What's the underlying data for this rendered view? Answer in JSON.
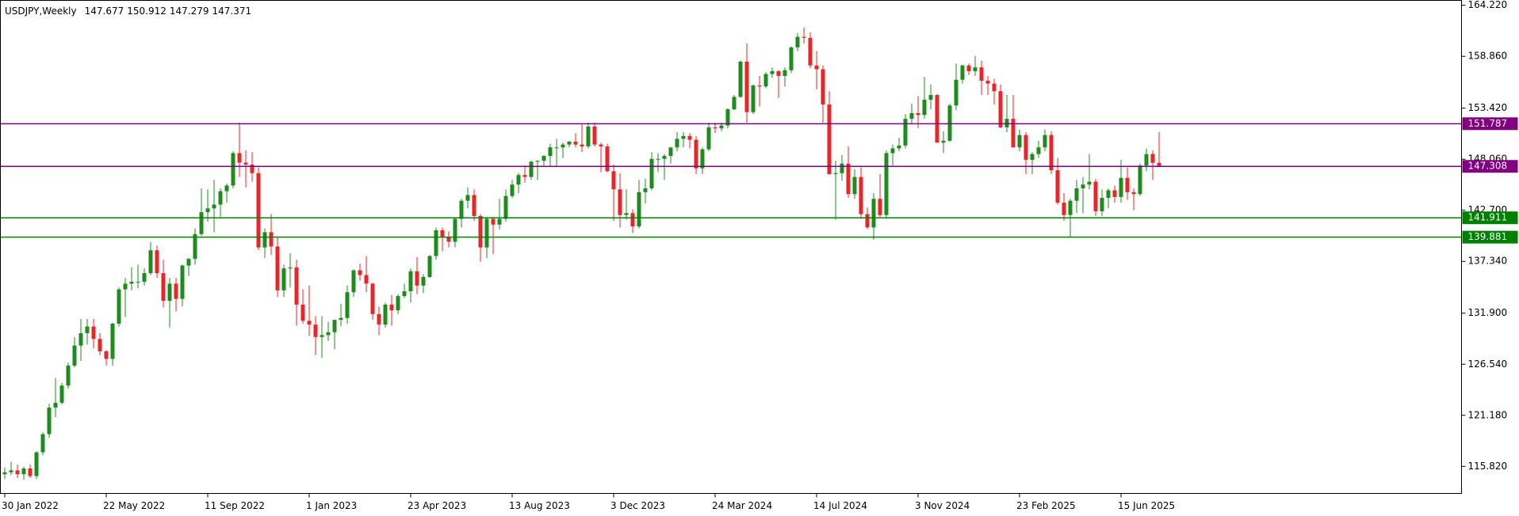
{
  "chart_data": {
    "type": "candlestick",
    "title": "USDJPY,Weekly",
    "up_color": "#1f8b1f",
    "down_color": "#e8262a",
    "ylim": [
      112.98,
      164.73
    ],
    "yticks": [
      {
        "value": 164.22,
        "label": "164.220"
      },
      {
        "value": 158.86,
        "label": "158.860"
      },
      {
        "value": 153.42,
        "label": "153.420"
      },
      {
        "value": 148.06,
        "label": "148.060"
      },
      {
        "value": 142.7,
        "label": "142.700"
      },
      {
        "value": 137.34,
        "label": "137.340"
      },
      {
        "value": 131.9,
        "label": "131.900"
      },
      {
        "value": 126.54,
        "label": "126.540"
      },
      {
        "value": 121.18,
        "label": "121.180"
      },
      {
        "value": 115.82,
        "label": "115.820"
      }
    ],
    "levels": [
      {
        "value": 151.787,
        "color": "#800080"
      },
      {
        "value": 147.308,
        "color": "#800080"
      },
      {
        "value": 141.911,
        "color": "#008000"
      },
      {
        "value": 139.881,
        "color": "#008000"
      }
    ],
    "categories": [
      "30 Jan 2022",
      null,
      null,
      null,
      null,
      null,
      null,
      null,
      null,
      null,
      null,
      null,
      null,
      null,
      null,
      null,
      "22 May 2022",
      null,
      null,
      null,
      null,
      null,
      null,
      null,
      null,
      null,
      null,
      null,
      null,
      null,
      null,
      null,
      "11 Sep 2022",
      null,
      null,
      null,
      null,
      null,
      null,
      null,
      null,
      null,
      null,
      null,
      null,
      null,
      null,
      null,
      "1 Jan 2023",
      null,
      null,
      null,
      null,
      null,
      null,
      null,
      null,
      null,
      null,
      null,
      null,
      null,
      null,
      null,
      "23 Apr 2023",
      null,
      null,
      null,
      null,
      null,
      null,
      null,
      null,
      null,
      null,
      null,
      null,
      null,
      null,
      null,
      "13 Aug 2023",
      null,
      null,
      null,
      null,
      null,
      null,
      null,
      null,
      null,
      null,
      null,
      null,
      null,
      null,
      null,
      "3 Dec 2023",
      null,
      null,
      null,
      null,
      null,
      null,
      null,
      null,
      null,
      null,
      null,
      null,
      null,
      null,
      null,
      "24 Mar 2024",
      null,
      null,
      null,
      null,
      null,
      null,
      null,
      null,
      null,
      null,
      null,
      null,
      null,
      null,
      null,
      "14 Jul 2024",
      null,
      null,
      null,
      null,
      null,
      null,
      null,
      null,
      null,
      null,
      null,
      null,
      null,
      null,
      null,
      "3 Nov 2024",
      null,
      null,
      null,
      null,
      null,
      null,
      null,
      null,
      null,
      null,
      null,
      null,
      null,
      null,
      null,
      "23 Feb 2025",
      null,
      null,
      null,
      null,
      null,
      null,
      null,
      null,
      null,
      null,
      null,
      null,
      null,
      null,
      null,
      "15 Jun 2025",
      null,
      null,
      null,
      null,
      null,
      null
    ],
    "candles": [
      [
        115.0,
        115.7,
        114.5,
        115.2
      ],
      [
        115.2,
        116.3,
        114.9,
        115.4
      ],
      [
        115.4,
        116.0,
        114.6,
        115.0
      ],
      [
        115.0,
        115.8,
        114.4,
        115.6
      ],
      [
        115.6,
        116.0,
        114.6,
        114.8
      ],
      [
        114.8,
        117.4,
        114.5,
        117.3
      ],
      [
        117.3,
        119.4,
        117.0,
        119.2
      ],
      [
        119.2,
        122.4,
        118.8,
        122.0
      ],
      [
        122.0,
        125.1,
        121.0,
        122.5
      ],
      [
        122.5,
        124.6,
        122.3,
        124.3
      ],
      [
        124.3,
        126.7,
        124.0,
        126.4
      ],
      [
        126.4,
        129.4,
        126.2,
        128.5
      ],
      [
        128.5,
        131.3,
        126.9,
        129.8
      ],
      [
        129.8,
        131.3,
        128.6,
        130.5
      ],
      [
        130.5,
        131.3,
        128.2,
        129.2
      ],
      [
        129.2,
        129.8,
        127.5,
        127.9
      ],
      [
        127.9,
        128.0,
        126.4,
        127.1
      ],
      [
        127.1,
        130.9,
        126.4,
        130.8
      ],
      [
        130.8,
        134.6,
        130.5,
        134.4
      ],
      [
        134.4,
        135.6,
        131.5,
        135.0
      ],
      [
        135.0,
        136.7,
        134.3,
        135.2
      ],
      [
        135.2,
        137.0,
        134.5,
        135.2
      ],
      [
        135.2,
        136.6,
        134.8,
        136.1
      ],
      [
        136.1,
        139.4,
        135.9,
        138.5
      ],
      [
        138.5,
        139.0,
        135.6,
        136.1
      ],
      [
        136.1,
        137.5,
        132.5,
        133.2
      ],
      [
        133.2,
        135.6,
        130.4,
        135.0
      ],
      [
        135.0,
        135.6,
        132.1,
        133.4
      ],
      [
        133.4,
        137.0,
        132.6,
        136.9
      ],
      [
        136.9,
        137.7,
        135.8,
        137.6
      ],
      [
        137.6,
        140.8,
        137.0,
        140.2
      ],
      [
        140.2,
        145.0,
        140.0,
        142.5
      ],
      [
        142.5,
        144.9,
        141.5,
        142.9
      ],
      [
        142.9,
        145.9,
        140.4,
        143.3
      ],
      [
        143.3,
        145.0,
        142.0,
        144.7
      ],
      [
        144.7,
        145.5,
        143.5,
        145.3
      ],
      [
        145.3,
        148.9,
        145.0,
        148.7
      ],
      [
        148.7,
        151.9,
        146.2,
        147.7
      ],
      [
        147.7,
        149.0,
        145.1,
        147.5
      ],
      [
        147.5,
        148.8,
        145.7,
        146.6
      ],
      [
        146.6,
        147.2,
        138.5,
        138.8
      ],
      [
        138.8,
        140.8,
        137.7,
        140.4
      ],
      [
        140.4,
        142.3,
        138.0,
        138.9
      ],
      [
        138.9,
        139.9,
        133.6,
        134.3
      ],
      [
        134.3,
        137.0,
        133.6,
        136.6
      ],
      [
        136.6,
        138.2,
        134.6,
        136.7
      ],
      [
        136.7,
        137.5,
        130.6,
        132.8
      ],
      [
        132.8,
        134.4,
        130.8,
        131.1
      ],
      [
        131.1,
        134.8,
        129.5,
        130.7
      ],
      [
        130.7,
        131.6,
        127.5,
        129.4
      ],
      [
        129.4,
        131.6,
        127.2,
        129.6
      ],
      [
        129.6,
        131.0,
        129.0,
        129.9
      ],
      [
        129.9,
        131.2,
        128.1,
        131.2
      ],
      [
        131.2,
        132.9,
        130.5,
        131.4
      ],
      [
        131.4,
        134.8,
        130.8,
        134.1
      ],
      [
        134.1,
        136.5,
        133.6,
        136.4
      ],
      [
        136.4,
        137.1,
        135.3,
        135.9
      ],
      [
        135.9,
        137.9,
        134.1,
        135.0
      ],
      [
        135.0,
        135.1,
        131.2,
        131.8
      ],
      [
        131.8,
        132.6,
        129.6,
        130.7
      ],
      [
        130.7,
        133.0,
        130.4,
        132.8
      ],
      [
        132.8,
        133.8,
        130.6,
        132.2
      ],
      [
        132.2,
        133.9,
        131.8,
        133.7
      ],
      [
        133.7,
        135.0,
        133.5,
        134.2
      ],
      [
        134.2,
        136.6,
        133.0,
        136.3
      ],
      [
        136.3,
        137.8,
        133.9,
        134.8
      ],
      [
        134.8,
        136.0,
        134.0,
        135.7
      ],
      [
        135.7,
        138.0,
        135.6,
        137.9
      ],
      [
        137.9,
        140.9,
        137.5,
        140.6
      ],
      [
        140.6,
        140.9,
        138.4,
        139.9
      ],
      [
        139.9,
        140.5,
        138.8,
        139.4
      ],
      [
        139.4,
        141.9,
        138.8,
        141.8
      ],
      [
        141.8,
        143.9,
        140.9,
        143.7
      ],
      [
        143.7,
        145.1,
        142.9,
        144.3
      ],
      [
        144.3,
        144.9,
        141.6,
        142.1
      ],
      [
        142.1,
        142.3,
        137.3,
        138.8
      ],
      [
        138.8,
        142.0,
        137.7,
        141.8
      ],
      [
        141.8,
        142.0,
        138.1,
        141.2
      ],
      [
        141.2,
        143.9,
        140.7,
        141.8
      ],
      [
        141.8,
        144.9,
        141.5,
        144.2
      ],
      [
        144.2,
        145.9,
        144.0,
        145.4
      ],
      [
        145.4,
        146.6,
        144.5,
        146.4
      ],
      [
        146.4,
        147.4,
        145.6,
        146.2
      ],
      [
        146.2,
        147.9,
        145.9,
        147.8
      ],
      [
        147.8,
        147.9,
        145.9,
        147.9
      ],
      [
        147.9,
        148.5,
        147.3,
        148.4
      ],
      [
        148.4,
        149.7,
        147.3,
        149.3
      ],
      [
        149.3,
        150.2,
        147.3,
        149.3
      ],
      [
        149.3,
        149.8,
        148.2,
        149.6
      ],
      [
        149.6,
        150.0,
        149.3,
        149.9
      ],
      [
        149.9,
        150.8,
        149.3,
        149.6
      ],
      [
        149.6,
        151.7,
        148.8,
        149.4
      ],
      [
        149.4,
        151.9,
        149.2,
        151.5
      ],
      [
        151.5,
        151.9,
        149.4,
        149.6
      ],
      [
        149.6,
        149.8,
        146.7,
        149.4
      ],
      [
        149.4,
        149.7,
        146.7,
        146.8
      ],
      [
        146.8,
        147.5,
        141.6,
        144.9
      ],
      [
        144.9,
        146.6,
        140.9,
        142.2
      ],
      [
        142.2,
        144.9,
        141.7,
        142.4
      ],
      [
        142.4,
        142.8,
        140.3,
        141.0
      ],
      [
        141.0,
        145.9,
        140.8,
        144.6
      ],
      [
        144.6,
        146.0,
        143.4,
        145.0
      ],
      [
        145.0,
        148.8,
        144.8,
        148.1
      ],
      [
        148.1,
        148.7,
        146.7,
        148.1
      ],
      [
        148.1,
        148.6,
        145.9,
        148.4
      ],
      [
        148.4,
        149.3,
        147.6,
        149.3
      ],
      [
        149.3,
        150.9,
        148.9,
        150.2
      ],
      [
        150.2,
        150.9,
        149.3,
        150.5
      ],
      [
        150.5,
        150.8,
        149.2,
        150.1
      ],
      [
        150.1,
        150.5,
        146.5,
        147.1
      ],
      [
        147.1,
        149.3,
        146.5,
        149.1
      ],
      [
        149.1,
        151.9,
        148.9,
        151.4
      ],
      [
        151.4,
        151.9,
        150.8,
        151.3
      ],
      [
        151.3,
        151.9,
        151.0,
        151.6
      ],
      [
        151.6,
        153.4,
        151.3,
        153.3
      ],
      [
        153.3,
        154.8,
        153.2,
        154.6
      ],
      [
        154.6,
        158.4,
        154.5,
        158.3
      ],
      [
        158.3,
        160.2,
        151.9,
        153.0
      ],
      [
        153.0,
        155.9,
        152.8,
        155.8
      ],
      [
        155.8,
        156.8,
        153.6,
        155.7
      ],
      [
        155.7,
        157.2,
        155.5,
        157.0
      ],
      [
        157.0,
        157.7,
        156.6,
        157.3
      ],
      [
        157.3,
        157.4,
        154.5,
        156.8
      ],
      [
        156.8,
        157.7,
        155.7,
        157.4
      ],
      [
        157.4,
        159.9,
        157.1,
        159.8
      ],
      [
        159.8,
        161.3,
        159.4,
        160.9
      ],
      [
        160.9,
        161.9,
        160.2,
        160.8
      ],
      [
        160.8,
        161.4,
        157.6,
        157.9
      ],
      [
        157.9,
        159.4,
        155.4,
        157.5
      ],
      [
        157.5,
        157.9,
        151.9,
        153.8
      ],
      [
        153.8,
        155.2,
        146.4,
        146.5
      ],
      [
        146.5,
        147.9,
        141.7,
        146.6
      ],
      [
        146.6,
        148.5,
        145.8,
        147.6
      ],
      [
        147.6,
        149.4,
        144.0,
        144.4
      ],
      [
        144.4,
        147.0,
        143.9,
        146.2
      ],
      [
        146.2,
        147.2,
        141.8,
        142.3
      ],
      [
        142.3,
        143.0,
        140.7,
        140.9
      ],
      [
        140.9,
        144.5,
        139.6,
        143.9
      ],
      [
        143.9,
        146.5,
        142.0,
        142.2
      ],
      [
        142.2,
        149.0,
        141.8,
        148.7
      ],
      [
        148.7,
        149.6,
        147.4,
        149.2
      ],
      [
        149.2,
        150.3,
        148.9,
        149.5
      ],
      [
        149.5,
        152.8,
        149.2,
        152.3
      ],
      [
        152.3,
        153.9,
        151.8,
        152.9
      ],
      [
        152.9,
        154.7,
        151.3,
        152.7
      ],
      [
        152.7,
        156.7,
        152.3,
        154.3
      ],
      [
        154.3,
        155.9,
        153.3,
        154.8
      ],
      [
        154.8,
        154.9,
        149.8,
        149.8
      ],
      [
        149.8,
        151.0,
        148.7,
        150.0
      ],
      [
        150.0,
        153.9,
        149.9,
        153.7
      ],
      [
        153.7,
        158.1,
        153.2,
        156.4
      ],
      [
        156.4,
        158.0,
        156.0,
        157.9
      ],
      [
        157.9,
        158.1,
        156.9,
        157.3
      ],
      [
        157.3,
        158.9,
        156.8,
        157.7
      ],
      [
        157.7,
        158.4,
        154.8,
        156.3
      ],
      [
        156.3,
        156.8,
        154.8,
        156.0
      ],
      [
        156.0,
        156.5,
        153.8,
        155.2
      ],
      [
        155.2,
        155.9,
        151.3,
        151.4
      ],
      [
        151.4,
        154.8,
        150.9,
        152.3
      ],
      [
        152.3,
        154.8,
        149.3,
        149.3
      ],
      [
        149.3,
        151.2,
        148.9,
        150.6
      ],
      [
        150.6,
        150.9,
        146.5,
        148.0
      ],
      [
        148.0,
        148.8,
        146.5,
        148.6
      ],
      [
        148.6,
        150.0,
        148.2,
        149.3
      ],
      [
        149.3,
        151.2,
        148.9,
        150.6
      ],
      [
        150.6,
        151.0,
        146.5,
        146.9
      ],
      [
        146.9,
        148.2,
        143.3,
        143.5
      ],
      [
        143.5,
        144.5,
        141.6,
        142.2
      ],
      [
        142.2,
        143.9,
        139.9,
        143.7
      ],
      [
        143.7,
        145.9,
        142.4,
        145.0
      ],
      [
        145.0,
        146.2,
        142.4,
        145.4
      ],
      [
        145.4,
        148.6,
        144.9,
        145.7
      ],
      [
        145.7,
        146.0,
        142.1,
        142.6
      ],
      [
        142.6,
        144.9,
        142.1,
        144.0
      ],
      [
        144.0,
        145.0,
        142.9,
        144.8
      ],
      [
        144.8,
        145.3,
        143.5,
        144.1
      ],
      [
        144.1,
        148.0,
        143.5,
        146.1
      ],
      [
        146.1,
        147.2,
        143.8,
        144.6
      ],
      [
        144.6,
        145.0,
        142.7,
        144.4
      ],
      [
        144.4,
        147.6,
        144.2,
        147.4
      ],
      [
        147.4,
        149.2,
        146.8,
        148.6
      ],
      [
        148.6,
        149.0,
        145.9,
        147.677
      ],
      [
        147.677,
        150.912,
        147.279,
        147.371
      ]
    ]
  }
}
